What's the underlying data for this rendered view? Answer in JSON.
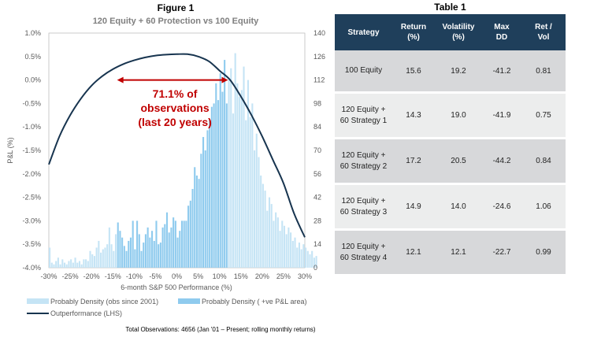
{
  "chart_data": {
    "type": "bar+line",
    "figure_label": "Figure 1",
    "title": "120 Equity + 60 Protection vs 100 Equity",
    "xlabel": "6-month S&P 500 Performance (%)",
    "ylabel_left": "P&L (%)",
    "ylabel_right": "",
    "x_ticks": [
      "-30%",
      "-25%",
      "-20%",
      "-15%",
      "-10%",
      "-5%",
      "0%",
      "5%",
      "10%",
      "15%",
      "20%",
      "25%",
      "30%"
    ],
    "y_left_ticks": [
      "1.0%",
      "0.5%",
      "0.0%",
      "-0.5%",
      "-1.0%",
      "-1.5%",
      "-2.0%",
      "-2.5%",
      "-3.0%",
      "-3.5%",
      "-4.0%"
    ],
    "y_right_ticks": [
      "140",
      "126",
      "112",
      "98",
      "84",
      "70",
      "56",
      "42",
      "28",
      "14",
      "0"
    ],
    "xlim": [
      -30,
      30
    ],
    "ylim_left": [
      -4.0,
      1.0
    ],
    "ylim_right": [
      0,
      140
    ],
    "annotation": [
      "71.1% of",
      "observations",
      "(last 20 years)"
    ],
    "annotation_range": [
      -14,
      12
    ],
    "line_series": {
      "name": "Outperformance (LHS)",
      "color": "#17344f",
      "x": [
        -30,
        -27.5,
        -25,
        -22.5,
        -20,
        -17.5,
        -15,
        -12.5,
        -10,
        -7.5,
        -5,
        -2.5,
        0,
        2.5,
        5,
        7.5,
        10,
        12.5,
        15,
        17.5,
        20,
        22.5,
        25,
        27.5,
        30
      ],
      "y": [
        -1.8,
        -1.2,
        -0.75,
        -0.4,
        -0.12,
        0.08,
        0.23,
        0.34,
        0.42,
        0.48,
        0.52,
        0.54,
        0.55,
        0.55,
        0.5,
        0.4,
        0.2,
        0.0,
        -0.35,
        -0.75,
        -1.2,
        -1.7,
        -2.2,
        -2.85,
        -3.35
      ]
    },
    "histogram": {
      "series": [
        {
          "name": "Probably Density (obs since 2001)",
          "color": "#c5e4f5"
        },
        {
          "name": "Probably Density ( +ve P&L area)",
          "color": "#8fcbee"
        }
      ],
      "bin_width": 0.5,
      "x_start": -30,
      "positive_range": [
        -14,
        12
      ],
      "values": [
        12,
        3,
        2,
        4,
        6,
        2,
        5,
        3,
        2,
        4,
        5,
        3,
        6,
        3,
        4,
        2,
        5,
        5,
        4,
        10,
        8,
        7,
        12,
        16,
        9,
        11,
        12,
        14,
        24,
        14,
        10,
        20,
        27,
        22,
        18,
        13,
        10,
        16,
        18,
        28,
        11,
        28,
        20,
        10,
        15,
        20,
        24,
        18,
        22,
        16,
        28,
        14,
        15,
        24,
        26,
        33,
        21,
        24,
        30,
        28,
        18,
        22,
        28,
        28,
        28,
        37,
        40,
        47,
        60,
        55,
        53,
        68,
        78,
        70,
        82,
        88,
        96,
        98,
        110,
        100,
        116,
        105,
        124,
        98,
        112,
        119,
        92,
        128,
        110,
        102,
        106,
        120,
        88,
        112,
        90,
        98,
        70,
        80,
        66,
        55,
        50,
        46,
        34,
        42,
        38,
        28,
        33,
        30,
        22,
        28,
        25,
        20,
        24,
        21,
        16,
        18,
        12,
        15,
        11,
        14,
        12,
        10,
        8,
        10,
        6,
        7
      ]
    },
    "footer": "Total Observations: 4656 (Jan '01 – Present; rolling monthly returns)"
  },
  "table": {
    "title": "Table 1",
    "headers": [
      "Strategy",
      "Return\n(%)",
      "Volatility\n(%)",
      "Max\nDD",
      "Ret /\nVol"
    ],
    "rows": [
      [
        "100 Equity",
        "15.6",
        "19.2",
        "-41.2",
        "0.81"
      ],
      [
        "120 Equity +\n60 Strategy 1",
        "14.3",
        "19.0",
        "-41.9",
        "0.75"
      ],
      [
        "120 Equity +\n60 Strategy 2",
        "17.2",
        "20.5",
        "-44.2",
        "0.84"
      ],
      [
        "120 Equity +\n60 Strategy 3",
        "14.9",
        "14.0",
        "-24.6",
        "1.06"
      ],
      [
        "120 Equity +\n60 Strategy 4",
        "12.1",
        "12.1",
        "-22.7",
        "0.99"
      ]
    ]
  }
}
